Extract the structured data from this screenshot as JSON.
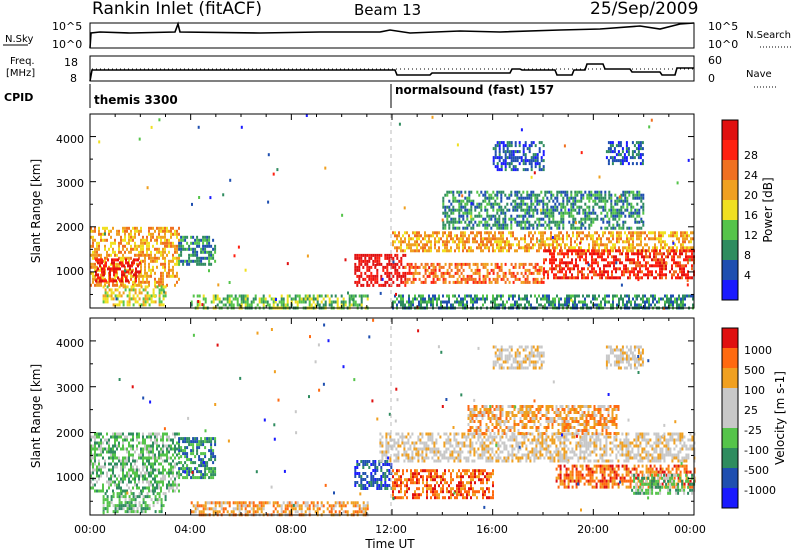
{
  "header": {
    "station": "Rankin Inlet (fitACF)",
    "beam": "Beam 13",
    "date": "25/Sep/2009"
  },
  "top_strip": {
    "left_label": "N.Sky",
    "right_label": "N.Search",
    "tick_left_top": "10^5",
    "tick_left_bottom": "10^0",
    "tick_right_top": "10^5",
    "tick_right_bottom": "10^0"
  },
  "freq_strip": {
    "left_label_1": "Freq.",
    "left_label_2": "[MHz]",
    "tick_left_top": "18",
    "tick_left_bottom": "8",
    "tick_right_top": "60",
    "tick_right_bottom": "0",
    "right_label": "Nave"
  },
  "cpid": {
    "label": "CPID",
    "segments": [
      {
        "name": "themis 3300",
        "start_hour": 0
      },
      {
        "name": "normalsound (fast) 157",
        "start_hour": 12
      }
    ]
  },
  "colors": {
    "power": [
      "#1a1aff",
      "#1f4fb0",
      "#2f8c5f",
      "#55c44a",
      "#f0e020",
      "#f0a020",
      "#f07020",
      "#ff2010",
      "#e01010"
    ],
    "velocity": [
      "#e01010",
      "#ff6a10",
      "#f0a020",
      "#c8c8c8",
      "#c8c8c8",
      "#55c44a",
      "#2f8c5f",
      "#1f4fb0",
      "#1a1aff"
    ]
  },
  "chart_data": [
    {
      "type": "heatmap",
      "title": "Power",
      "ylabel": "Slant Range [km]",
      "colorbar_label": "Power [dB]",
      "colorbar_ticks": [
        "4",
        "8",
        "12",
        "16",
        "20",
        "24",
        "28"
      ],
      "ylim": [
        200,
        4500
      ],
      "y_ticks": [
        "1000",
        "2000",
        "3000",
        "4000"
      ],
      "xlim": [
        0,
        24
      ],
      "regions": [
        {
          "h0": 0.0,
          "h1": 3.5,
          "r0": 700,
          "r1": 2000,
          "level": 5
        },
        {
          "h0": 0.2,
          "h1": 2.0,
          "r0": 800,
          "r1": 1300,
          "level": 8
        },
        {
          "h0": 0.5,
          "h1": 3.0,
          "r0": 300,
          "r1": 700,
          "level": 4
        },
        {
          "h0": 3.5,
          "h1": 5.0,
          "r0": 1200,
          "r1": 1800,
          "level": 2
        },
        {
          "h0": 4.0,
          "h1": 11.0,
          "r0": 200,
          "r1": 500,
          "level": 3
        },
        {
          "h0": 10.5,
          "h1": 12.5,
          "r0": 700,
          "r1": 1400,
          "level": 8
        },
        {
          "h0": 12.0,
          "h1": 24.0,
          "r0": 1500,
          "r1": 1900,
          "level": 5
        },
        {
          "h0": 12.5,
          "h1": 18.0,
          "r0": 800,
          "r1": 1200,
          "level": 6
        },
        {
          "h0": 18.0,
          "h1": 24.0,
          "r0": 900,
          "r1": 1500,
          "level": 7
        },
        {
          "h0": 14.0,
          "h1": 22.0,
          "r0": 2000,
          "r1": 2800,
          "level": 2
        },
        {
          "h0": 16.0,
          "h1": 18.0,
          "r0": 3300,
          "r1": 3900,
          "level": 1
        },
        {
          "h0": 20.5,
          "h1": 22.0,
          "r0": 3400,
          "r1": 3900,
          "level": 1
        },
        {
          "h0": 12.0,
          "h1": 24.0,
          "r0": 200,
          "r1": 500,
          "level": 2
        }
      ]
    },
    {
      "type": "heatmap",
      "title": "Velocity",
      "ylabel": "Slant Range [km]",
      "colorbar_label": "Velocity [m s-1]",
      "colorbar_ticks": [
        "1000",
        "500",
        "100",
        "25",
        "-25",
        "-100",
        "-500",
        "-1000"
      ],
      "ylim": [
        200,
        4500
      ],
      "y_ticks": [
        "1000",
        "2000",
        "3000",
        "4000"
      ],
      "xlim": [
        0,
        24
      ],
      "x_ticks": [
        "00:00",
        "04:00",
        "08:00",
        "12:00",
        "16:00",
        "20:00",
        "00:00"
      ],
      "xlabel": "Time UT",
      "regions": [
        {
          "h0": 0.0,
          "h1": 3.5,
          "r0": 700,
          "r1": 2000,
          "level": 5
        },
        {
          "h0": 3.5,
          "h1": 5.0,
          "r0": 1000,
          "r1": 1900,
          "level": 6
        },
        {
          "h0": 0.5,
          "h1": 3.0,
          "r0": 300,
          "r1": 700,
          "level": 5
        },
        {
          "h0": 4.0,
          "h1": 11.0,
          "r0": 200,
          "r1": 500,
          "level": 2
        },
        {
          "h0": 10.5,
          "h1": 12.0,
          "r0": 800,
          "r1": 1400,
          "level": 7
        },
        {
          "h0": 12.0,
          "h1": 16.0,
          "r0": 600,
          "r1": 1200,
          "level": 1
        },
        {
          "h0": 11.5,
          "h1": 24.0,
          "r0": 1400,
          "r1": 2000,
          "level": 3
        },
        {
          "h0": 18.5,
          "h1": 24.0,
          "r0": 800,
          "r1": 1300,
          "level": 1
        },
        {
          "h0": 21.5,
          "h1": 24.0,
          "r0": 700,
          "r1": 1100,
          "level": 5
        },
        {
          "h0": 15.0,
          "h1": 21.0,
          "r0": 2000,
          "r1": 2600,
          "level": 2
        },
        {
          "h0": 16.0,
          "h1": 18.0,
          "r0": 3400,
          "r1": 3900,
          "level": 3
        },
        {
          "h0": 20.5,
          "h1": 22.0,
          "r0": 3400,
          "r1": 3900,
          "level": 3
        }
      ]
    }
  ]
}
